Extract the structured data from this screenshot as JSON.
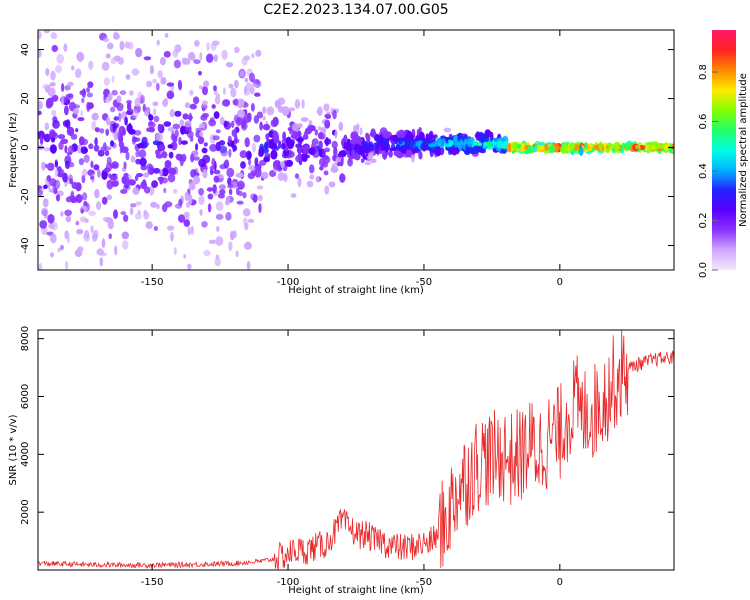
{
  "title": "C2E2.2023.134.07.00.G05",
  "chart_data": [
    {
      "type": "heatmap",
      "xlabel": "Height of straight line (km)",
      "ylabel": "Frequency (Hz)",
      "xlim": [
        -192,
        42
      ],
      "ylim": [
        -50,
        48
      ],
      "xticks": [
        -150,
        -100,
        -50,
        0
      ],
      "yticks": [
        -40,
        -20,
        0,
        20,
        40
      ],
      "grid": false,
      "colorbar": {
        "label": "Normalized spectral amplitude",
        "ticks": [
          0.0,
          0.2,
          0.4,
          0.6,
          0.8
        ],
        "colormap": [
          "#f4e8ff",
          "#cfa6ff",
          "#8a33ff",
          "#5a00ff",
          "#2222ff",
          "#00b4ff",
          "#00ffe0",
          "#22ff66",
          "#88ff00",
          "#ffe800",
          "#ff8800",
          "#ff2222",
          "#ff1a66"
        ]
      }
    },
    {
      "type": "line",
      "xlabel": "Height of straight line (km)",
      "ylabel": "SNR (10 * v/v)",
      "xlim": [
        -192,
        42
      ],
      "ylim": [
        0,
        8300
      ],
      "xticks": [
        -150,
        -100,
        -50,
        0
      ],
      "yticks": [
        2000,
        4000,
        6000,
        8000
      ],
      "grid": false,
      "line_color": "#e8282a",
      "series": [
        {
          "x": [
            -192,
            -180,
            -170,
            -160,
            -150,
            -140,
            -130,
            -120,
            -110,
            -105,
            -100,
            -97,
            -94,
            -90,
            -86,
            -83,
            -80,
            -78,
            -76,
            -74,
            -72,
            -70,
            -68,
            -66,
            -64,
            -62,
            -60,
            -58,
            -56,
            -54,
            -52,
            -50,
            -48,
            -46,
            -44,
            -42,
            -40,
            -38,
            -36,
            -34,
            -32,
            -30,
            -28,
            -26,
            -24,
            -22,
            -20,
            -18,
            -16,
            -14,
            -12,
            -10,
            -8,
            -6,
            -4,
            -2,
            0,
            2,
            4,
            6,
            8,
            10,
            12,
            14,
            16,
            18,
            20,
            22,
            24,
            26,
            28,
            30,
            32,
            34,
            36,
            38,
            40,
            42
          ],
          "values": [
            230,
            200,
            180,
            170,
            170,
            180,
            200,
            230,
            300,
            380,
            550,
            700,
            650,
            800,
            900,
            1300,
            1700,
            1500,
            1350,
            1200,
            1250,
            1150,
            1000,
            1050,
            900,
            850,
            800,
            750,
            780,
            820,
            870,
            900,
            950,
            1100,
            1300,
            1700,
            2200,
            2700,
            3000,
            3200,
            3500,
            3700,
            3900,
            3800,
            3850,
            4000,
            4000,
            3800,
            3900,
            4000,
            4200,
            4300,
            4100,
            4350,
            4500,
            4650,
            4700,
            5300,
            5500,
            5900,
            5200,
            5600,
            5400,
            5700,
            5900,
            6200,
            6500,
            6700,
            6900,
            7000,
            7100,
            7150,
            7200,
            7250,
            7300,
            7300,
            7350,
            7350
          ]
        }
      ]
    }
  ]
}
